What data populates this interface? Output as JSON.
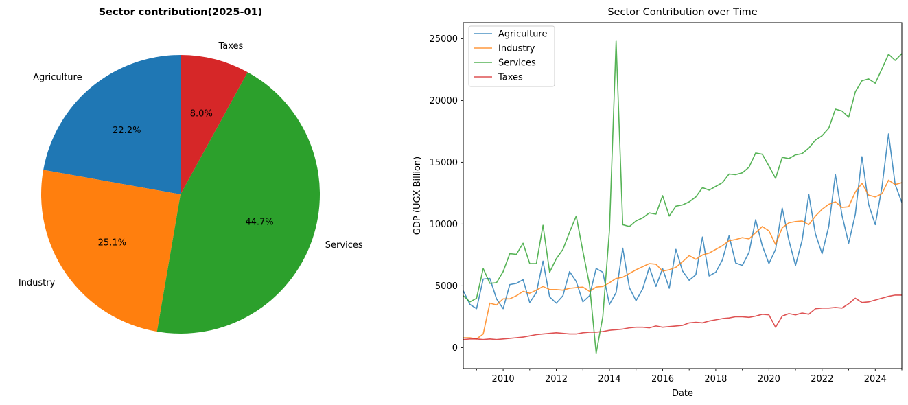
{
  "chart_data": [
    {
      "type": "pie",
      "title": "Sector contribution(2025-01)",
      "slices": [
        {
          "label": "Agriculture",
          "value": 22.2,
          "pct_label": "22.2%",
          "color": "#1f77b4"
        },
        {
          "label": "Industry",
          "value": 25.1,
          "pct_label": "25.1%",
          "color": "#ff7f0e"
        },
        {
          "label": "Services",
          "value": 44.7,
          "pct_label": "44.7%",
          "color": "#2ca02c"
        },
        {
          "label": "Taxes",
          "value": 8.0,
          "pct_label": "8.0%",
          "color": "#d62728"
        }
      ]
    },
    {
      "type": "line",
      "title": "Sector Contribution over Time",
      "xlabel": "Date",
      "ylabel": "GDP (UGX Billion)",
      "xlim": [
        2008.5,
        2025.0
      ],
      "ylim": [
        -1700,
        26300
      ],
      "xticks": [
        2010,
        2012,
        2014,
        2016,
        2018,
        2020,
        2022,
        2024
      ],
      "yticks": [
        0,
        5000,
        10000,
        15000,
        20000,
        25000
      ],
      "ytick_labels": [
        "0",
        "5000",
        "10000",
        "15000",
        "20000",
        "25000"
      ],
      "legend_position": "upper left",
      "x": [
        2008.5,
        2008.75,
        2009.0,
        2009.25,
        2009.5,
        2009.75,
        2010.0,
        2010.25,
        2010.5,
        2010.75,
        2011.0,
        2011.25,
        2011.5,
        2011.75,
        2012.0,
        2012.25,
        2012.5,
        2012.75,
        2013.0,
        2013.25,
        2013.5,
        2013.75,
        2014.0,
        2014.25,
        2014.5,
        2014.75,
        2015.0,
        2015.25,
        2015.5,
        2015.75,
        2016.0,
        2016.25,
        2016.5,
        2016.75,
        2017.0,
        2017.25,
        2017.5,
        2017.75,
        2018.0,
        2018.25,
        2018.5,
        2018.75,
        2019.0,
        2019.25,
        2019.5,
        2019.75,
        2020.0,
        2020.25,
        2020.5,
        2020.75,
        2021.0,
        2021.25,
        2021.5,
        2021.75,
        2022.0,
        2022.25,
        2022.5,
        2022.75,
        2023.0,
        2023.25,
        2023.5,
        2023.75,
        2024.0,
        2024.25,
        2024.5,
        2024.75,
        2025.0
      ],
      "series": [
        {
          "name": "Agriculture",
          "color": "#1f77b4",
          "values": [
            4600,
            3500,
            3150,
            5550,
            5600,
            3950,
            3150,
            5100,
            5200,
            5500,
            3650,
            4450,
            7000,
            4100,
            3600,
            4200,
            6150,
            5350,
            3700,
            4200,
            6400,
            6100,
            3500,
            4450,
            8050,
            4850,
            3800,
            4750,
            6500,
            4950,
            6400,
            4800,
            7950,
            6200,
            5450,
            5900,
            8950,
            5800,
            6100,
            7100,
            9050,
            6850,
            6650,
            7700,
            10350,
            8250,
            6800,
            7950,
            11300,
            8700,
            6650,
            8700,
            12400,
            9200,
            7600,
            9800,
            14000,
            10700,
            8450,
            10800,
            15450,
            11600,
            9950,
            12950,
            17300,
            13200,
            11750
          ]
        },
        {
          "name": "Industry",
          "color": "#ff7f0e",
          "values": [
            800,
            800,
            700,
            1100,
            3600,
            3450,
            3950,
            3950,
            4200,
            4550,
            4400,
            4650,
            4950,
            4700,
            4700,
            4650,
            4800,
            4850,
            4900,
            4550,
            4900,
            4950,
            5250,
            5600,
            5700,
            6000,
            6300,
            6550,
            6800,
            6750,
            6200,
            6300,
            6500,
            6950,
            7450,
            7150,
            7500,
            7650,
            7950,
            8250,
            8650,
            8750,
            8900,
            8800,
            9300,
            9800,
            9450,
            8350,
            9700,
            10100,
            10200,
            10250,
            9950,
            10650,
            11200,
            11600,
            11800,
            11350,
            11400,
            12600,
            13300,
            12350,
            12200,
            12450,
            13550,
            13200,
            13350
          ]
        },
        {
          "name": "Services",
          "color": "#2ca02c",
          "values": [
            4200,
            3700,
            4000,
            6400,
            5200,
            5250,
            6150,
            7600,
            7550,
            8450,
            6800,
            6800,
            9900,
            6100,
            7200,
            7950,
            9350,
            10650,
            7800,
            5100,
            -450,
            2500,
            9500,
            24800,
            9950,
            9800,
            10250,
            10500,
            10900,
            10800,
            12300,
            10650,
            11450,
            11550,
            11800,
            12200,
            12950,
            12750,
            13050,
            13350,
            14050,
            14000,
            14150,
            14600,
            15750,
            15650,
            14700,
            13700,
            15400,
            15300,
            15600,
            15700,
            16150,
            16800,
            17150,
            17750,
            19300,
            19150,
            18650,
            20700,
            21600,
            21750,
            21400,
            22550,
            23750,
            23250,
            23800
          ]
        },
        {
          "name": "Taxes",
          "color": "#d62728",
          "values": [
            650,
            700,
            700,
            650,
            700,
            650,
            700,
            750,
            800,
            850,
            950,
            1050,
            1100,
            1150,
            1200,
            1150,
            1100,
            1100,
            1200,
            1250,
            1250,
            1300,
            1400,
            1450,
            1500,
            1600,
            1650,
            1650,
            1600,
            1750,
            1650,
            1700,
            1750,
            1800,
            2000,
            2050,
            2000,
            2150,
            2250,
            2350,
            2400,
            2500,
            2500,
            2450,
            2550,
            2700,
            2650,
            1650,
            2550,
            2750,
            2650,
            2800,
            2700,
            3150,
            3200,
            3200,
            3250,
            3200,
            3550,
            4000,
            3650,
            3700,
            3850,
            4000,
            4150,
            4250,
            4250
          ]
        }
      ]
    }
  ]
}
